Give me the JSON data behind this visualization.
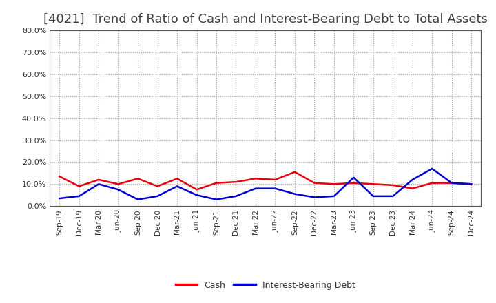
{
  "title": "[4021]  Trend of Ratio of Cash and Interest-Bearing Debt to Total Assets",
  "x_labels": [
    "Sep-19",
    "Dec-19",
    "Mar-20",
    "Jun-20",
    "Sep-20",
    "Dec-20",
    "Mar-21",
    "Jun-21",
    "Sep-21",
    "Dec-21",
    "Mar-22",
    "Jun-22",
    "Sep-22",
    "Dec-22",
    "Mar-23",
    "Jun-23",
    "Sep-23",
    "Dec-23",
    "Mar-24",
    "Jun-24",
    "Sep-24",
    "Dec-24"
  ],
  "cash": [
    13.5,
    9.0,
    12.0,
    10.0,
    12.5,
    9.0,
    12.5,
    7.5,
    10.5,
    11.0,
    12.5,
    12.0,
    15.5,
    10.5,
    10.0,
    10.5,
    10.0,
    9.5,
    8.0,
    10.5,
    10.5,
    10.0
  ],
  "interest_bearing_debt": [
    3.5,
    4.5,
    10.0,
    7.5,
    3.0,
    4.5,
    9.0,
    5.0,
    3.0,
    4.5,
    8.0,
    8.0,
    5.5,
    4.0,
    4.5,
    13.0,
    4.5,
    4.5,
    12.0,
    17.0,
    10.5,
    10.0
  ],
  "cash_color": "#e8000d",
  "debt_color": "#0000cc",
  "ylim": [
    0,
    80
  ],
  "yticks": [
    0,
    10,
    20,
    30,
    40,
    50,
    60,
    70,
    80
  ],
  "background_color": "#ffffff",
  "grid_color": "#999999",
  "title_color": "#404040",
  "title_fontsize": 13,
  "legend_labels": [
    "Cash",
    "Interest-Bearing Debt"
  ],
  "line_width": 1.8
}
